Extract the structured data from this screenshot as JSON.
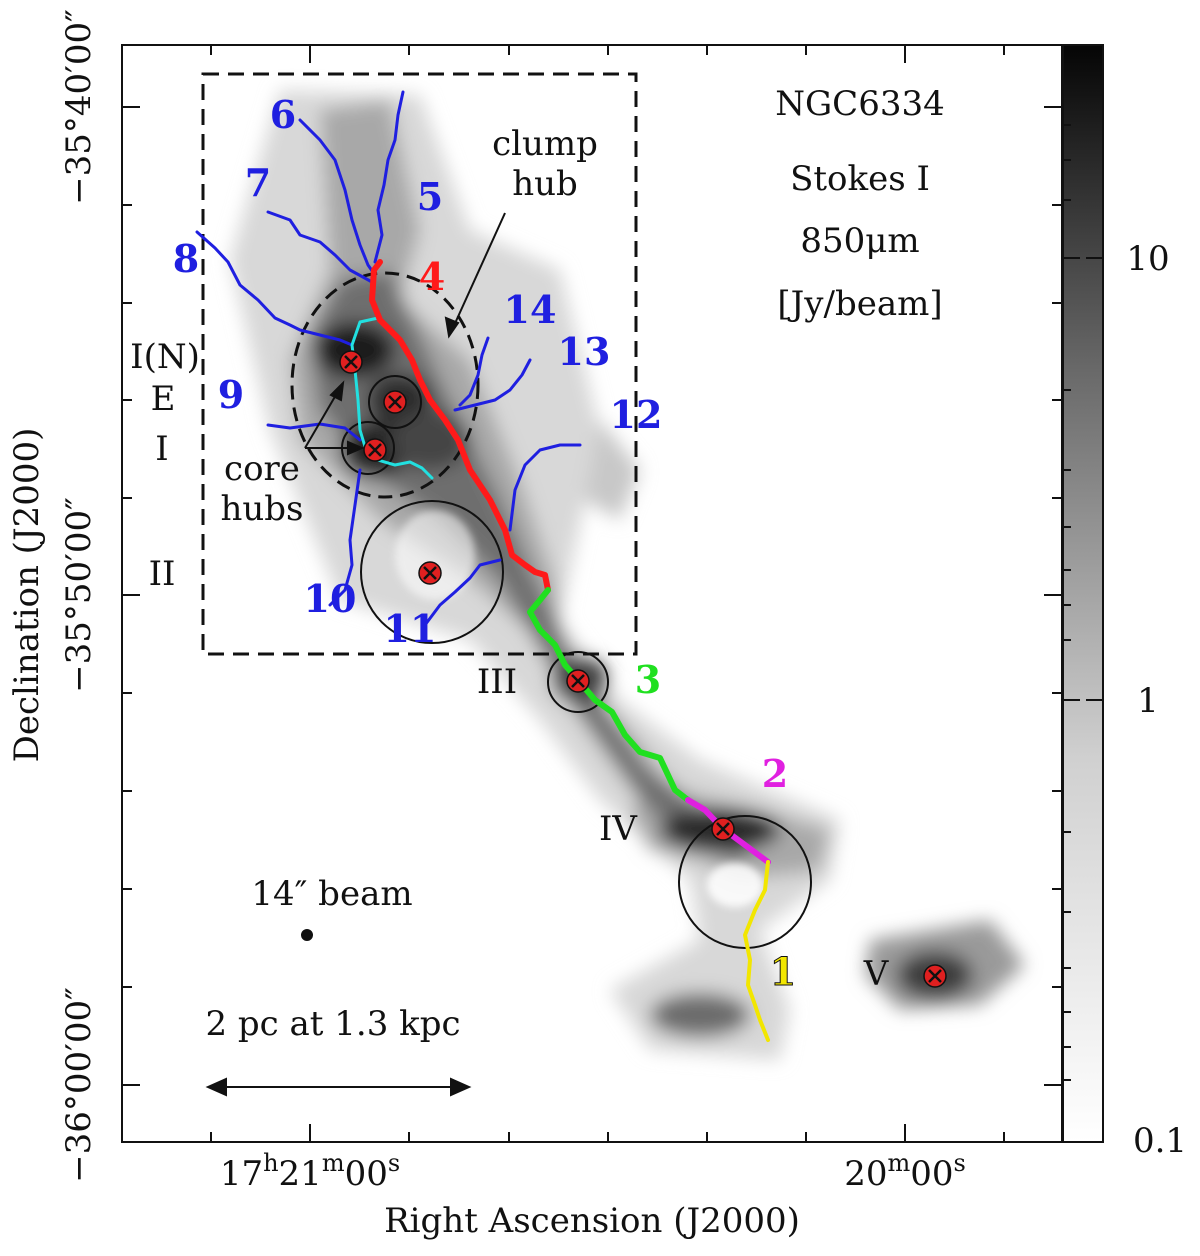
{
  "map": {
    "object": "NGC6334",
    "stokes": "Stokes I",
    "wavelength": "850μm",
    "units": "[Jy/beam]",
    "xlabel": "Right Ascension (J2000)",
    "ylabel": "Declination (J2000)",
    "x_ticks": [
      {
        "main": "17",
        "sup1": "h",
        "mid": "21",
        "sup2": "m",
        "tail": "00",
        "sup3": "s"
      },
      {
        "main": "20",
        "sup1": "m",
        "mid": "00",
        "sup2": "s",
        "tail": "",
        "sup3": ""
      }
    ],
    "y_ticks": [
      "−35°40′00″",
      "−35°50′00″",
      "−36°00′00″"
    ],
    "colorbar_ticks": [
      "10",
      "1",
      "0.1"
    ],
    "beam_label": "14″ beam",
    "scale_label": "2 pc at 1.3 kpc",
    "annotations": {
      "clump_hub": [
        "clump",
        "hub"
      ],
      "core_hubs": [
        "core",
        "hubs"
      ]
    },
    "sources": [
      "I(N)",
      "E",
      "I",
      "II",
      "III",
      "IV",
      "V"
    ],
    "filament_labels": [
      {
        "text": "1",
        "color": "#f2e600"
      },
      {
        "text": "2",
        "color": "#e020e0"
      },
      {
        "text": "3",
        "color": "#20e020"
      },
      {
        "text": "4",
        "color": "#ff1a1a"
      },
      {
        "text": "5",
        "color": "#1f1fe0"
      },
      {
        "text": "6",
        "color": "#1f1fe0"
      },
      {
        "text": "7",
        "color": "#1f1fe0"
      },
      {
        "text": "8",
        "color": "#1f1fe0"
      },
      {
        "text": "9",
        "color": "#1f1fe0"
      },
      {
        "text": "10",
        "color": "#1f1fe0"
      },
      {
        "text": "11",
        "color": "#1f1fe0"
      },
      {
        "text": "12",
        "color": "#1f1fe0"
      },
      {
        "text": "13",
        "color": "#1f1fe0"
      },
      {
        "text": "14",
        "color": "#1f1fe0"
      }
    ],
    "colors": {
      "spine_red": "#ff1a1a",
      "spine_green": "#20e020",
      "spine_magenta": "#e020e0",
      "spine_yellow": "#f2e600",
      "branch_blue": "#1f1fe0",
      "branch_cyan": "#22e0e0",
      "marker": "#e02020"
    }
  }
}
